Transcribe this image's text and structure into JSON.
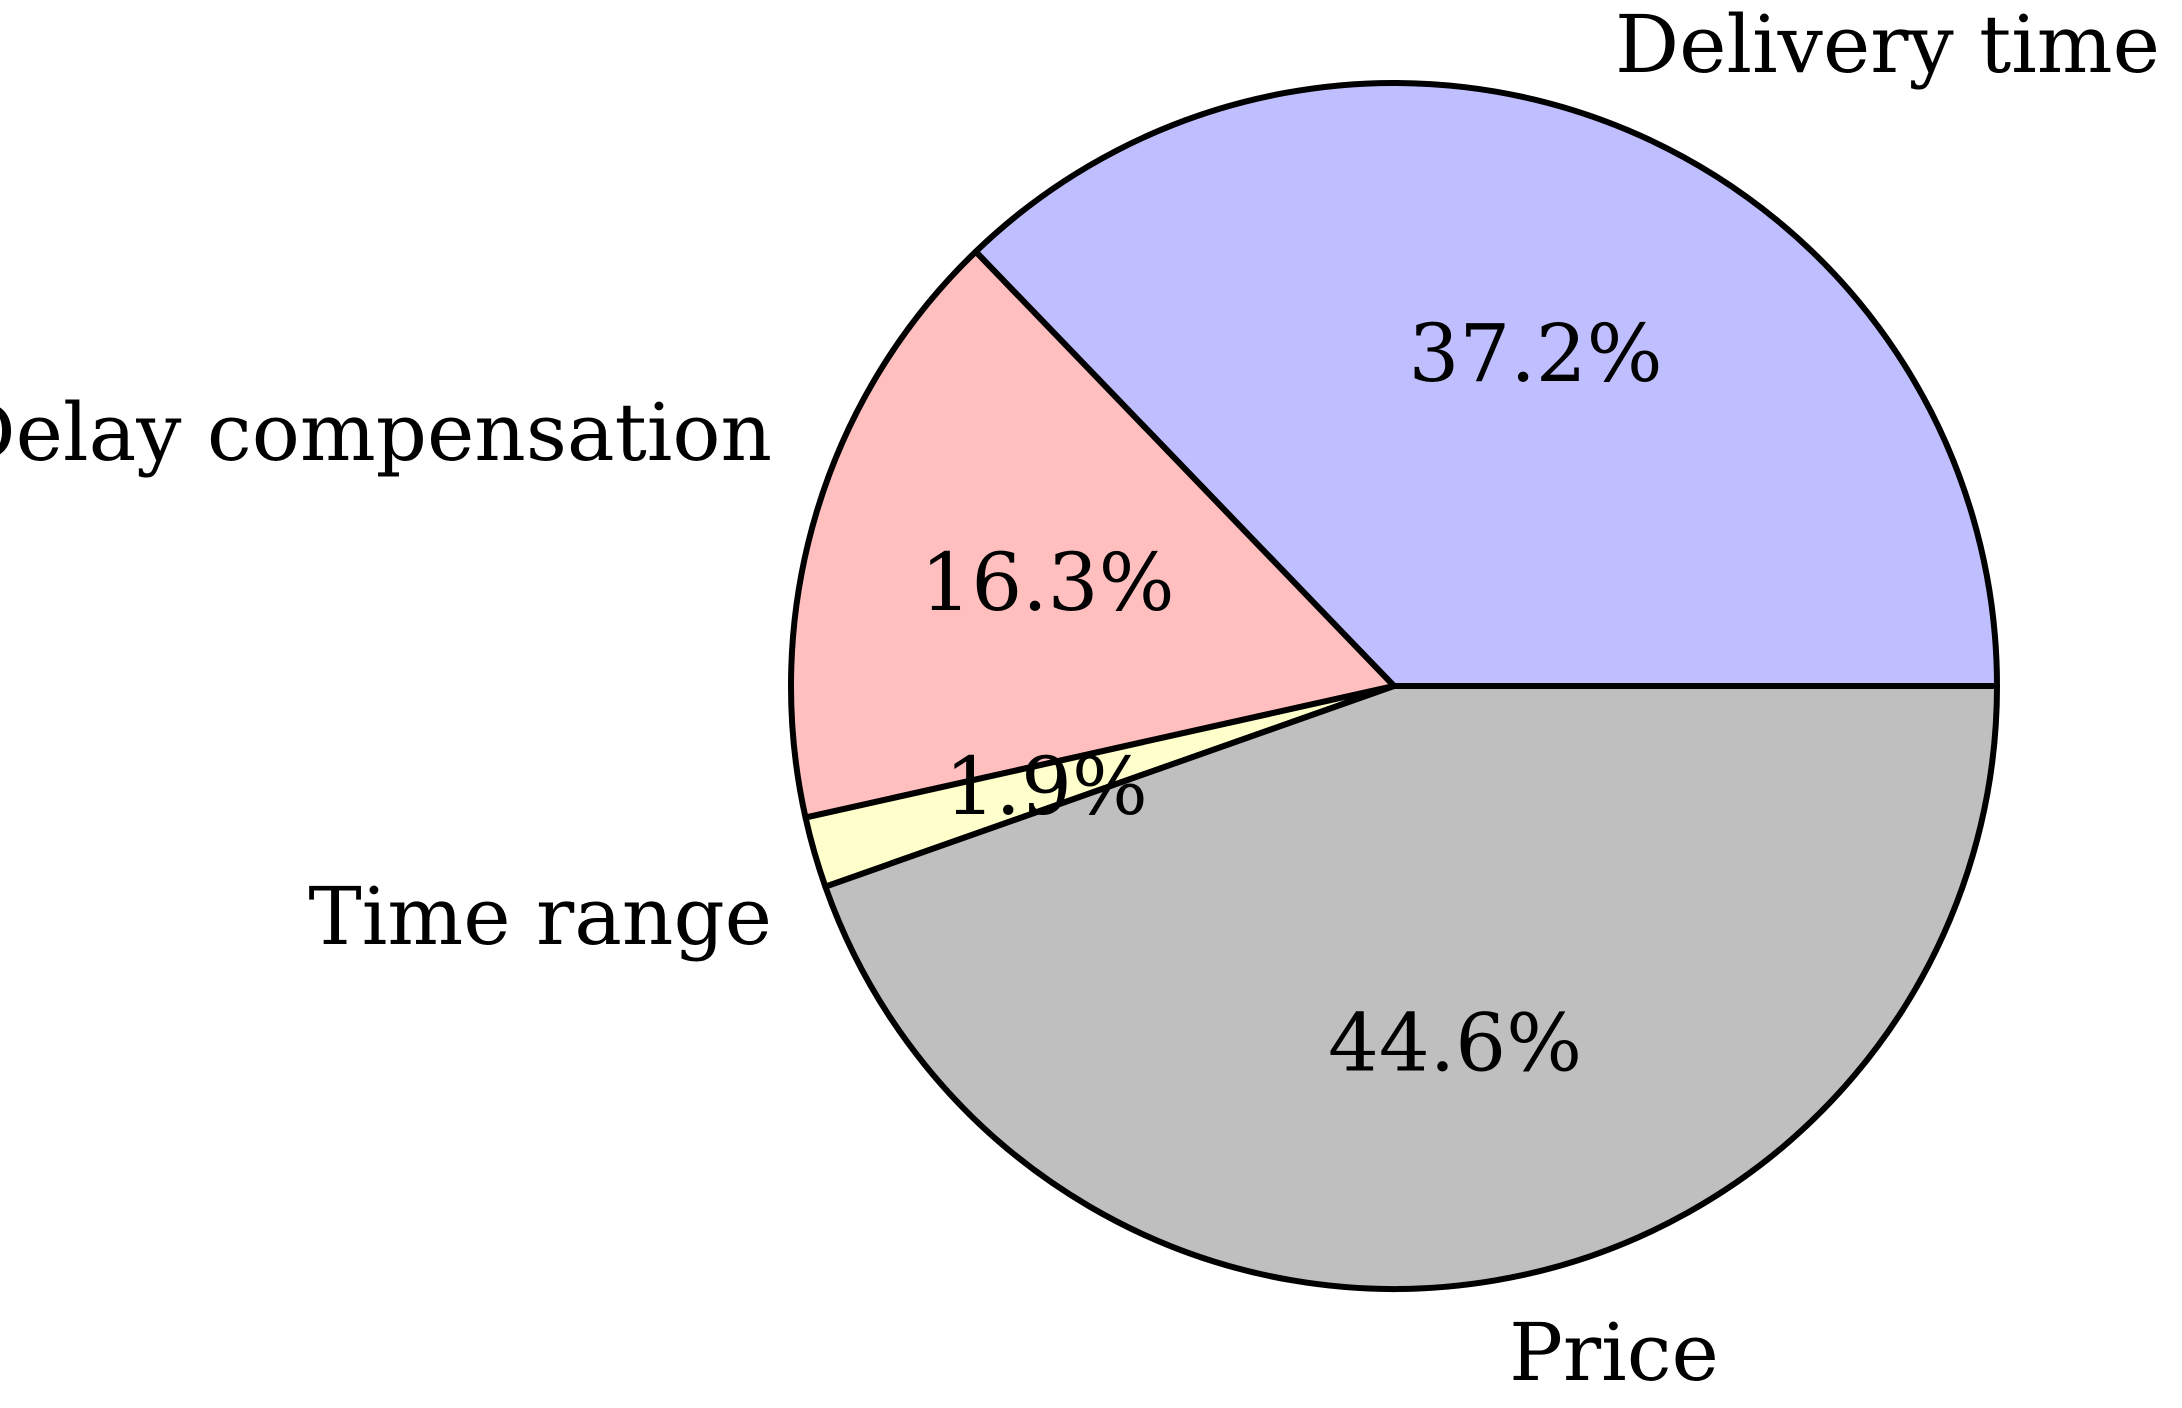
{
  "chart_data": {
    "type": "pie",
    "title": "",
    "slices": [
      {
        "label": "Delivery time",
        "value": 37.2,
        "value_label": "37.2%",
        "color": "#bfbfff"
      },
      {
        "label": "Delay compensation",
        "value": 16.3,
        "value_label": "16.3%",
        "color": "#ffbfbf"
      },
      {
        "label": "Time range",
        "value": 1.9,
        "value_label": "1.9%",
        "color": "#ffffcc"
      },
      {
        "label": "Price",
        "value": 44.6,
        "value_label": "44.6%",
        "color": "#bfbfbf"
      }
    ],
    "start_angle_deg": 0,
    "direction": "counterclockwise",
    "legend": "none",
    "stroke_color": "#000000"
  }
}
